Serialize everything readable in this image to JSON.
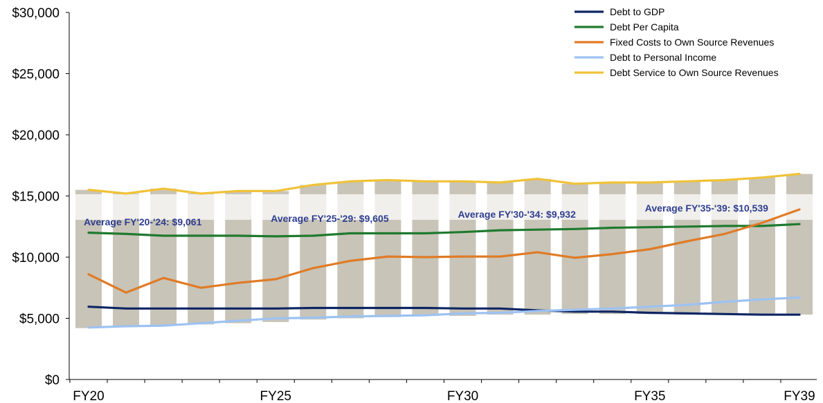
{
  "chart_data": {
    "type": "bar",
    "categories": [
      "FY20",
      "FY21",
      "FY22",
      "FY23",
      "FY24",
      "FY25",
      "FY26",
      "FY27",
      "FY28",
      "FY29",
      "FY30",
      "FY31",
      "FY32",
      "FY33",
      "FY34",
      "FY35",
      "FY36",
      "FY37",
      "FY38",
      "FY39"
    ],
    "x_tick_labels": [
      "FY20",
      "FY25",
      "FY30",
      "FY35",
      "FY39"
    ],
    "y_tick_labels": [
      "$0",
      "$5,000",
      "$10,000",
      "$15,000",
      "$20,000",
      "$25,000",
      "$30,000"
    ],
    "ylim": [
      0,
      30000
    ],
    "bars": {
      "color": "#c8c4b8",
      "low": [
        4200,
        4300,
        4400,
        4500,
        4600,
        4700,
        4900,
        5000,
        5100,
        5200,
        5200,
        5300,
        5300,
        5350,
        5350,
        5350,
        5300,
        5300,
        5250,
        5300
      ],
      "high": [
        15500,
        15200,
        15600,
        15200,
        15400,
        15400,
        15900,
        16200,
        16300,
        16200,
        16200,
        16100,
        16400,
        16000,
        16100,
        16100,
        16200,
        16300,
        16500,
        16800
      ]
    },
    "series": [
      {
        "name": "Debt to GDP",
        "color": "#0d2563",
        "values": [
          5950,
          5800,
          5800,
          5800,
          5800,
          5800,
          5850,
          5850,
          5850,
          5850,
          5800,
          5800,
          5650,
          5550,
          5550,
          5450,
          5400,
          5350,
          5300,
          5300
        ]
      },
      {
        "name": "Debt Per Capita",
        "color": "#1f7a2e",
        "values": [
          12000,
          11900,
          11750,
          11750,
          11750,
          11700,
          11750,
          11950,
          11950,
          11950,
          12050,
          12200,
          12250,
          12300,
          12400,
          12450,
          12500,
          12550,
          12550,
          12700
        ]
      },
      {
        "name": "Fixed Costs to Own Source Revenues",
        "color": "#e07b26",
        "values": [
          8600,
          7100,
          8300,
          7500,
          7900,
          8200,
          9100,
          9700,
          10050,
          10000,
          10050,
          10050,
          10400,
          9950,
          10250,
          10650,
          11300,
          11900,
          12800,
          13900
        ]
      },
      {
        "name": "Debt to Personal Income",
        "color": "#9cc2f2",
        "values": [
          4250,
          4350,
          4400,
          4600,
          4800,
          5000,
          5050,
          5150,
          5200,
          5250,
          5400,
          5450,
          5600,
          5700,
          5800,
          5950,
          6100,
          6350,
          6550,
          6700
        ]
      },
      {
        "name": "Debt Service to Own Source Revenues",
        "color": "#f0c238",
        "values": [
          15500,
          15200,
          15600,
          15200,
          15400,
          15400,
          15900,
          16200,
          16300,
          16200,
          16200,
          16100,
          16400,
          16000,
          16100,
          16100,
          16200,
          16300,
          16500,
          16800
        ]
      }
    ],
    "annotations": [
      {
        "text": "Average FY'20-'24: $9,061",
        "range": [
          0,
          4
        ]
      },
      {
        "text": "Average FY'25-'29: $9,605",
        "range": [
          5,
          9
        ]
      },
      {
        "text": "Average FY'30-'34: $9,932",
        "range": [
          10,
          14
        ]
      },
      {
        "text": "Average FY'35-'39: $10,539",
        "range": [
          15,
          19
        ]
      }
    ],
    "grid": false,
    "legend_position": "top-right"
  }
}
